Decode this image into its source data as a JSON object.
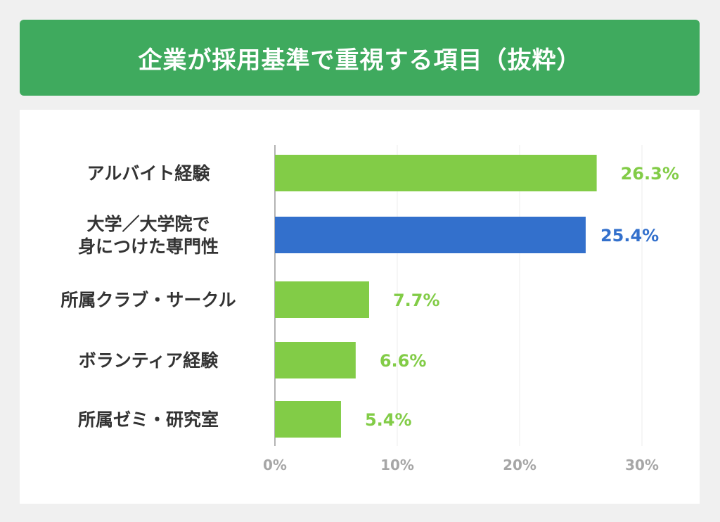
{
  "header": {
    "title": "企業が採用基準で重視する項目（抜粋）"
  },
  "colors": {
    "header_bg": "#3faa5e",
    "bar_default": "#82cc47",
    "bar_highlight": "#3370cc",
    "label_default": "#82cc47",
    "label_highlight": "#3370cc"
  },
  "chart_data": {
    "type": "bar",
    "orientation": "horizontal",
    "title": "企業が採用基準で重視する項目（抜粋）",
    "categories": [
      [
        "アルバイト経験"
      ],
      [
        "大学／大学院で",
        "身につけた専門性"
      ],
      [
        "所属クラブ・サークル"
      ],
      [
        "ボランティア経験"
      ],
      [
        "所属ゼミ・研究室"
      ]
    ],
    "values": [
      26.3,
      25.4,
      7.7,
      6.6,
      5.4
    ],
    "value_labels": [
      "26.3%",
      "25.4%",
      "7.7%",
      "6.6%",
      "5.4%"
    ],
    "highlight_index": 1,
    "xlim": [
      0,
      30
    ],
    "xticks": [
      0,
      10,
      20,
      30
    ],
    "xtick_labels": [
      "0%",
      "10%",
      "20%",
      "30%"
    ],
    "grid": true,
    "unit": "%"
  }
}
